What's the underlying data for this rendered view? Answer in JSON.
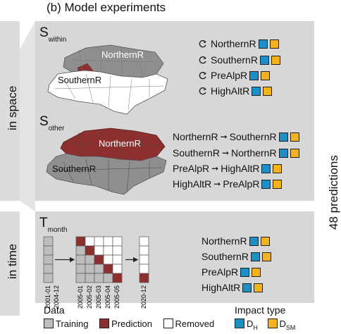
{
  "title": "(b) Model experiments",
  "side_labels": {
    "space": "in space",
    "time": "in time"
  },
  "right_label": "48 predictions",
  "within": {
    "symbol": "S",
    "subscript": "within",
    "map_labels": {
      "northern": "NorthernR",
      "southern": "SouthernR"
    },
    "rows": [
      "NorthernR",
      "SouthernR",
      "PreAlpR",
      "HighAltR"
    ]
  },
  "other": {
    "symbol": "S",
    "subscript": "other",
    "map_labels": {
      "northern": "NorthernR",
      "southern": "SouthernR"
    },
    "rows": [
      {
        "from": "NorthernR",
        "to": "SouthernR"
      },
      {
        "from": "SouthernR",
        "to": "NorthernR"
      },
      {
        "from": "PreAlpR",
        "to": "HighAltR"
      },
      {
        "from": "HighAltR",
        "to": "PreAlpR"
      }
    ]
  },
  "time": {
    "symbol": "T",
    "subscript": "month",
    "dates": [
      "2001-01",
      "2004-12",
      "2005-01",
      "2005-02",
      "2005-03",
      "2005-04",
      "2005-05",
      "2020-12"
    ],
    "rows": [
      "NorthernR",
      "SouthernR",
      "PreAlpR",
      "HighAltR"
    ]
  },
  "legend": {
    "data_title": "Data",
    "training": "Training",
    "prediction": "Prediction",
    "removed": "Removed",
    "impact_title": "Impact type",
    "dh": "D",
    "dh_sub": "H",
    "dsm": "D",
    "dsm_sub": "SM"
  },
  "colors": {
    "blue": "#1b8fc8",
    "gold": "#f4b21c",
    "prediction": "#8e2f2f",
    "training": "#bdbdbd",
    "removed": "#ffffff",
    "panel": "#d7d7d7"
  }
}
